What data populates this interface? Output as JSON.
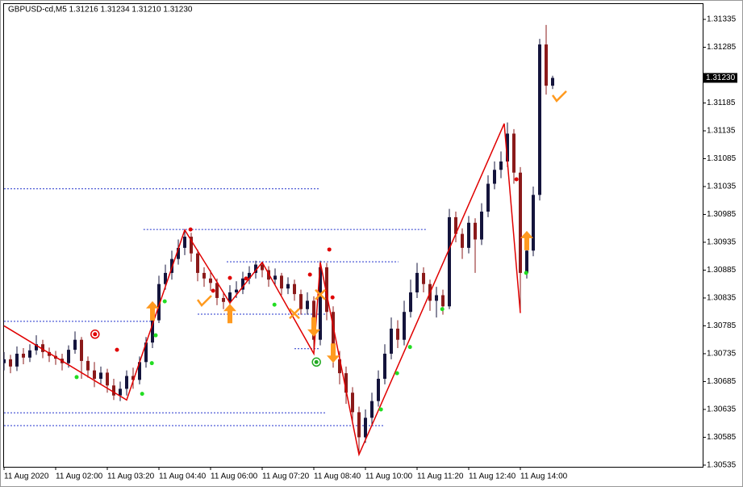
{
  "chart_data": {
    "type": "candlestick",
    "title": "GBPUSD-cd,M5  1.31216 1.31234 1.31210 1.31230",
    "bull_color": "#14143c",
    "bear_color": "#8b1a1a",
    "xlim": [
      -0.125,
      108.25
    ],
    "ylim": [
      1.30532,
      1.31364
    ],
    "xticks": [
      {
        "value": 0,
        "label": "11 Aug 2020"
      },
      {
        "value": 8,
        "label": "11 Aug 02:00"
      },
      {
        "value": 16,
        "label": "11 Aug 03:20"
      },
      {
        "value": 24,
        "label": "11 Aug 04:40"
      },
      {
        "value": 32,
        "label": "11 Aug 06:00"
      },
      {
        "value": 40,
        "label": "11 Aug 07:20"
      },
      {
        "value": 48,
        "label": "11 Aug 08:40"
      },
      {
        "value": 56,
        "label": "11 Aug 10:00"
      },
      {
        "value": 64,
        "label": "11 Aug 11:20"
      },
      {
        "value": 72,
        "label": "11 Aug 12:40"
      },
      {
        "value": 80,
        "label": "11 Aug 14:00"
      }
    ],
    "yticks": [
      1.31335,
      1.31285,
      1.31185,
      1.31135,
      1.31085,
      1.31035,
      1.30985,
      1.30935,
      1.30885,
      1.30835,
      1.30785,
      1.30735,
      1.30685,
      1.30635,
      1.30585,
      1.30535
    ],
    "last_price": {
      "value": 1.3123,
      "label": "1.31230"
    },
    "ohlc": [
      [
        1.30718,
        1.30738,
        1.30705,
        1.30725
      ],
      [
        1.30725,
        1.30733,
        1.307,
        1.30712
      ],
      [
        1.30712,
        1.30748,
        1.30704,
        1.30735
      ],
      [
        1.30735,
        1.30745,
        1.30716,
        1.30728
      ],
      [
        1.30728,
        1.30752,
        1.3072,
        1.30741
      ],
      [
        1.30741,
        1.30768,
        1.30733,
        1.30752
      ],
      [
        1.30752,
        1.3076,
        1.30727,
        1.30738
      ],
      [
        1.30738,
        1.30746,
        1.3072,
        1.30731
      ],
      [
        1.30731,
        1.3074,
        1.30715,
        1.30726
      ],
      [
        1.30726,
        1.30735,
        1.30705,
        1.30718
      ],
      [
        1.30718,
        1.3075,
        1.3071,
        1.30742
      ],
      [
        1.30742,
        1.30775,
        1.30735,
        1.3076
      ],
      [
        1.3076,
        1.30765,
        1.3069,
        1.30722
      ],
      [
        1.30722,
        1.3073,
        1.30692,
        1.30705
      ],
      [
        1.30705,
        1.3072,
        1.30675,
        1.3069
      ],
      [
        1.3069,
        1.30712,
        1.3068,
        1.30701
      ],
      [
        1.30701,
        1.30708,
        1.30665,
        1.30678
      ],
      [
        1.30678,
        1.3069,
        1.30652,
        1.3066
      ],
      [
        1.3066,
        1.30685,
        1.3065,
        1.30672
      ],
      [
        1.30672,
        1.30705,
        1.3066,
        1.30695
      ],
      [
        1.30695,
        1.3071,
        1.30672,
        1.30688
      ],
      [
        1.30688,
        1.3073,
        1.3068,
        1.3072
      ],
      [
        1.3072,
        1.30765,
        1.3071,
        1.30755
      ],
      [
        1.30755,
        1.30808,
        1.30745,
        1.30795
      ],
      [
        1.30795,
        1.30875,
        1.3079,
        1.3086
      ],
      [
        1.3086,
        1.30895,
        1.3085,
        1.3088
      ],
      [
        1.3088,
        1.3092,
        1.30868,
        1.30905
      ],
      [
        1.30905,
        1.3094,
        1.30895,
        1.30925
      ],
      [
        1.30925,
        1.30958,
        1.30912,
        1.30945
      ],
      [
        1.30945,
        1.30952,
        1.309,
        1.30915
      ],
      [
        1.30915,
        1.30922,
        1.30865,
        1.3088
      ],
      [
        1.3088,
        1.3089,
        1.30855,
        1.3087
      ],
      [
        1.3087,
        1.30885,
        1.30848,
        1.30862
      ],
      [
        1.30862,
        1.3087,
        1.30822,
        1.30835
      ],
      [
        1.30835,
        1.30845,
        1.30815,
        1.30828
      ],
      [
        1.30828,
        1.30858,
        1.3082,
        1.30845
      ],
      [
        1.30845,
        1.30865,
        1.30835,
        1.3085
      ],
      [
        1.3085,
        1.30882,
        1.30842,
        1.3087
      ],
      [
        1.3087,
        1.30892,
        1.3086,
        1.3088
      ],
      [
        1.3088,
        1.30902,
        1.3087,
        1.30895
      ],
      [
        1.30895,
        1.309,
        1.30872,
        1.30885
      ],
      [
        1.30885,
        1.30892,
        1.30855,
        1.30868
      ],
      [
        1.30868,
        1.30888,
        1.30858,
        1.30875
      ],
      [
        1.30875,
        1.3088,
        1.3084,
        1.30852
      ],
      [
        1.30852,
        1.30872,
        1.30842,
        1.3086
      ],
      [
        1.3086,
        1.30868,
        1.3083,
        1.30842
      ],
      [
        1.30842,
        1.3085,
        1.30805,
        1.30815
      ],
      [
        1.30815,
        1.30845,
        1.30805,
        1.3083
      ],
      [
        1.3083,
        1.30838,
        1.30735,
        1.3076
      ],
      [
        1.3076,
        1.30902,
        1.3075,
        1.3089
      ],
      [
        1.3089,
        1.30898,
        1.30795,
        1.3081
      ],
      [
        1.3081,
        1.3082,
        1.3071,
        1.30725
      ],
      [
        1.30725,
        1.3074,
        1.3068,
        1.307
      ],
      [
        1.307,
        1.30712,
        1.30645,
        1.30665
      ],
      [
        1.30665,
        1.30675,
        1.3061,
        1.3063
      ],
      [
        1.3063,
        1.3064,
        1.30554,
        1.30585
      ],
      [
        1.30585,
        1.30635,
        1.30575,
        1.3062
      ],
      [
        1.3062,
        1.30665,
        1.30605,
        1.3065
      ],
      [
        1.3065,
        1.30705,
        1.3064,
        1.3069
      ],
      [
        1.3069,
        1.30752,
        1.3068,
        1.30735
      ],
      [
        1.30735,
        1.308,
        1.30725,
        1.3078
      ],
      [
        1.3078,
        1.30795,
        1.30745,
        1.3076
      ],
      [
        1.3076,
        1.3083,
        1.3075,
        1.3081
      ],
      [
        1.3081,
        1.30868,
        1.308,
        1.30845
      ],
      [
        1.30845,
        1.30898,
        1.30835,
        1.3088
      ],
      [
        1.3088,
        1.3089,
        1.30845,
        1.3086
      ],
      [
        1.3086,
        1.30868,
        1.30812,
        1.3083
      ],
      [
        1.3083,
        1.30855,
        1.308,
        1.3084
      ],
      [
        1.3084,
        1.3085,
        1.30805,
        1.3082
      ],
      [
        1.3082,
        1.30995,
        1.30815,
        1.3098
      ],
      [
        1.3098,
        1.3099,
        1.30935,
        1.3095
      ],
      [
        1.3095,
        1.3096,
        1.30905,
        1.30925
      ],
      [
        1.30925,
        1.30982,
        1.30915,
        1.3097
      ],
      [
        1.3097,
        1.30978,
        1.3088,
        1.3094
      ],
      [
        1.3094,
        1.31005,
        1.3093,
        1.3099
      ],
      [
        1.3099,
        1.31055,
        1.3098,
        1.3104
      ],
      [
        1.3104,
        1.3108,
        1.3103,
        1.31065
      ],
      [
        1.31065,
        1.31098,
        1.3105,
        1.3108
      ],
      [
        1.3108,
        1.3115,
        1.3107,
        1.3113
      ],
      [
        1.3113,
        1.31138,
        1.3104,
        1.3106
      ],
      [
        1.3106,
        1.3107,
        1.30808,
        1.3088
      ],
      [
        1.3088,
        1.3094,
        1.3087,
        1.3092
      ],
      [
        1.3092,
        1.31035,
        1.3091,
        1.3102
      ],
      [
        1.3102,
        1.313,
        1.3101,
        1.3129
      ],
      [
        1.3129,
        1.31325,
        1.312,
        1.31216
      ],
      [
        1.31216,
        1.31234,
        1.3121,
        1.3123
      ]
    ],
    "zigzag": {
      "color": "#e00000",
      "x": [
        0,
        19,
        28,
        35,
        40,
        48,
        49,
        55,
        77.5,
        80
      ],
      "y": [
        1.30785,
        1.30652,
        1.30957,
        1.30826,
        1.30899,
        1.30735,
        1.30899,
        1.30554,
        1.31148,
        1.30808
      ]
    },
    "level_color": "#2233cc",
    "levels": [
      {
        "price": 1.31031,
        "x": [
          0,
          49
        ]
      },
      {
        "price": 1.30958,
        "x": [
          21.6,
          65.4
        ]
      },
      {
        "price": 1.309,
        "x": [
          34.5,
          61.1
        ]
      },
      {
        "price": 1.30806,
        "x": [
          30,
          49.9
        ]
      },
      {
        "price": 1.30793,
        "x": [
          0,
          23.1
        ]
      },
      {
        "price": 1.30744,
        "x": [
          45,
          49
        ]
      },
      {
        "price": 1.30629,
        "x": [
          0,
          49.9
        ]
      },
      {
        "price": 1.30606,
        "x": [
          0,
          58.9
        ]
      }
    ],
    "signal_color": "#ff9a1f",
    "signals": {
      "up": {
        "x": [
          23,
          35,
          81
        ],
        "y": [
          1.30812,
          1.30807,
          1.30938
        ]
      },
      "down": {
        "x": [
          48,
          51
        ],
        "y": [
          1.30783,
          1.30736
        ]
      },
      "check": {
        "x": [
          31,
          86
        ],
        "y": [
          1.30829,
          1.31196
        ]
      },
      "cross": {
        "x": [
          45,
          49
        ],
        "y": [
          1.30807,
          1.30841
        ]
      },
      "red_dots": {
        "color": "#e00000",
        "x": [
          17.5,
          28.9,
          32.4,
          35,
          37.5,
          47.4,
          50.4,
          50.9,
          79.4
        ],
        "y": [
          1.30742,
          1.30958,
          1.30848,
          1.30871,
          1.3087,
          1.30877,
          1.30922,
          1.30836,
          1.31048
        ]
      },
      "green_dots": {
        "color": "#22dd22",
        "x": [
          11.25,
          21.4,
          22.9,
          23.5,
          24.9,
          41.9,
          58.4,
          60.9,
          62.9,
          67.9,
          80.9
        ],
        "y": [
          1.30693,
          1.30663,
          1.30718,
          1.30768,
          1.30829,
          1.30823,
          1.30635,
          1.307,
          1.30747,
          1.30815,
          1.3088
        ]
      },
      "red_ring": {
        "color": "#e00000",
        "x": [
          14.1
        ],
        "y": [
          1.3077
        ]
      },
      "green_ring": {
        "color": "#22aa22",
        "x": [
          48.4
        ],
        "y": [
          1.3072
        ]
      }
    }
  }
}
